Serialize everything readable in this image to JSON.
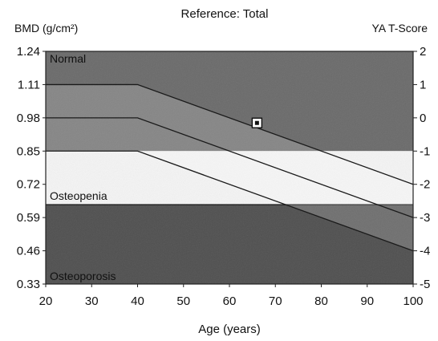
{
  "chart_data": {
    "type": "line",
    "title": "Reference: Total",
    "ylabel": "BMD (g/cm²)",
    "y2label": "YA T-Score",
    "xlabel": "Age (years)",
    "xlim": [
      20,
      100
    ],
    "ylim": [
      0.33,
      1.24
    ],
    "y2lim": [
      -5,
      2
    ],
    "x_ticks": [
      "20",
      "30",
      "40",
      "50",
      "60",
      "70",
      "80",
      "90",
      "100"
    ],
    "y_ticks": [
      "1.24",
      "1.11",
      "0.98",
      "0.85",
      "0.72",
      "0.59",
      "0.46",
      "0.33"
    ],
    "y2_ticks": [
      "2",
      "1",
      "0",
      "-1",
      "-2",
      "-3",
      "-4",
      "-5"
    ],
    "regions": [
      {
        "label": "Normal",
        "from": 0.85,
        "to": 1.24,
        "color": "#6a6a6a"
      },
      {
        "label": "Osteopenia",
        "from": 0.64,
        "to": 0.85,
        "color": "#f4f4f4"
      },
      {
        "label": "Osteoporosis",
        "from": 0.33,
        "to": 0.64,
        "color": "#4f4f4f"
      }
    ],
    "region_labels": [
      "Normal",
      "Osteopenia",
      "Osteoporosis"
    ],
    "series": [
      {
        "x": [
          20,
          40,
          100
        ],
        "y": [
          1.11,
          1.11,
          0.72
        ]
      },
      {
        "x": [
          20,
          40,
          100
        ],
        "y": [
          0.98,
          0.98,
          0.59
        ]
      },
      {
        "x": [
          20,
          40,
          100
        ],
        "y": [
          0.85,
          0.85,
          0.46
        ]
      }
    ],
    "patient_point": {
      "x": 66,
      "y": 0.96
    }
  }
}
